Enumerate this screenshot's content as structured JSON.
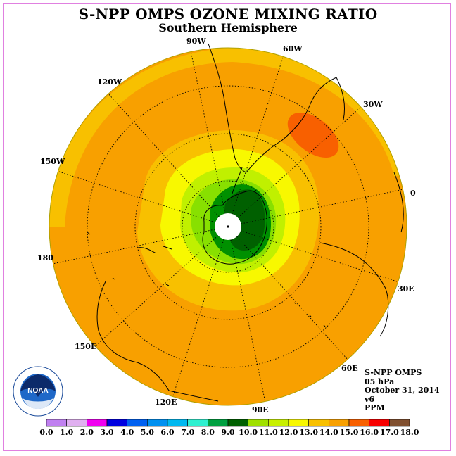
{
  "header": {
    "title": "S-NPP OMPS OZONE MIXING RATIO",
    "subtitle": "Southern Hemisphere"
  },
  "map": {
    "projection": "south-polar-stereographic",
    "longitude_labels": [
      "90W",
      "60W",
      "30W",
      "0",
      "30E",
      "60E",
      "90E",
      "120E",
      "150E",
      "180",
      "150W",
      "120W"
    ],
    "colors": {
      "background_orange": "#f8a000",
      "outer_light_orange": "#f8c000",
      "yellow": "#f8f800",
      "lime": "#c0f000",
      "light_green": "#88e000",
      "green": "#009000",
      "dark_green": "#006000",
      "red_orange": "#f86000",
      "polar_no_data": "#ffffff"
    }
  },
  "info": {
    "instrument": "S-NPP OMPS",
    "pressure": "05 hPa",
    "date": "October 31, 2014",
    "version": "v6",
    "units": "PPM"
  },
  "logo": {
    "text": "NOAA",
    "ring_text": "NATIONAL OCEANIC AND ATMOSPHERIC ADMINISTRATION U.S. DEPARTMENT OF COMMERCE"
  },
  "colorbar": {
    "ticks": [
      "0.0",
      "1.0",
      "2.0",
      "3.0",
      "4.0",
      "5.0",
      "6.0",
      "7.0",
      "8.0",
      "9.0",
      "10.0",
      "11.0",
      "12.0",
      "13.0",
      "14.0",
      "15.0",
      "16.0",
      "17.0",
      "18.0"
    ],
    "colors": [
      "#c080f0",
      "#e0b0f0",
      "#f000f0",
      "#0000e0",
      "#0060f0",
      "#0090f0",
      "#00b8f0",
      "#30f0d0",
      "#00a040",
      "#006000",
      "#a0e000",
      "#c8f000",
      "#f8f800",
      "#f8c000",
      "#f8a000",
      "#f86000",
      "#f80000",
      "#805030"
    ]
  }
}
